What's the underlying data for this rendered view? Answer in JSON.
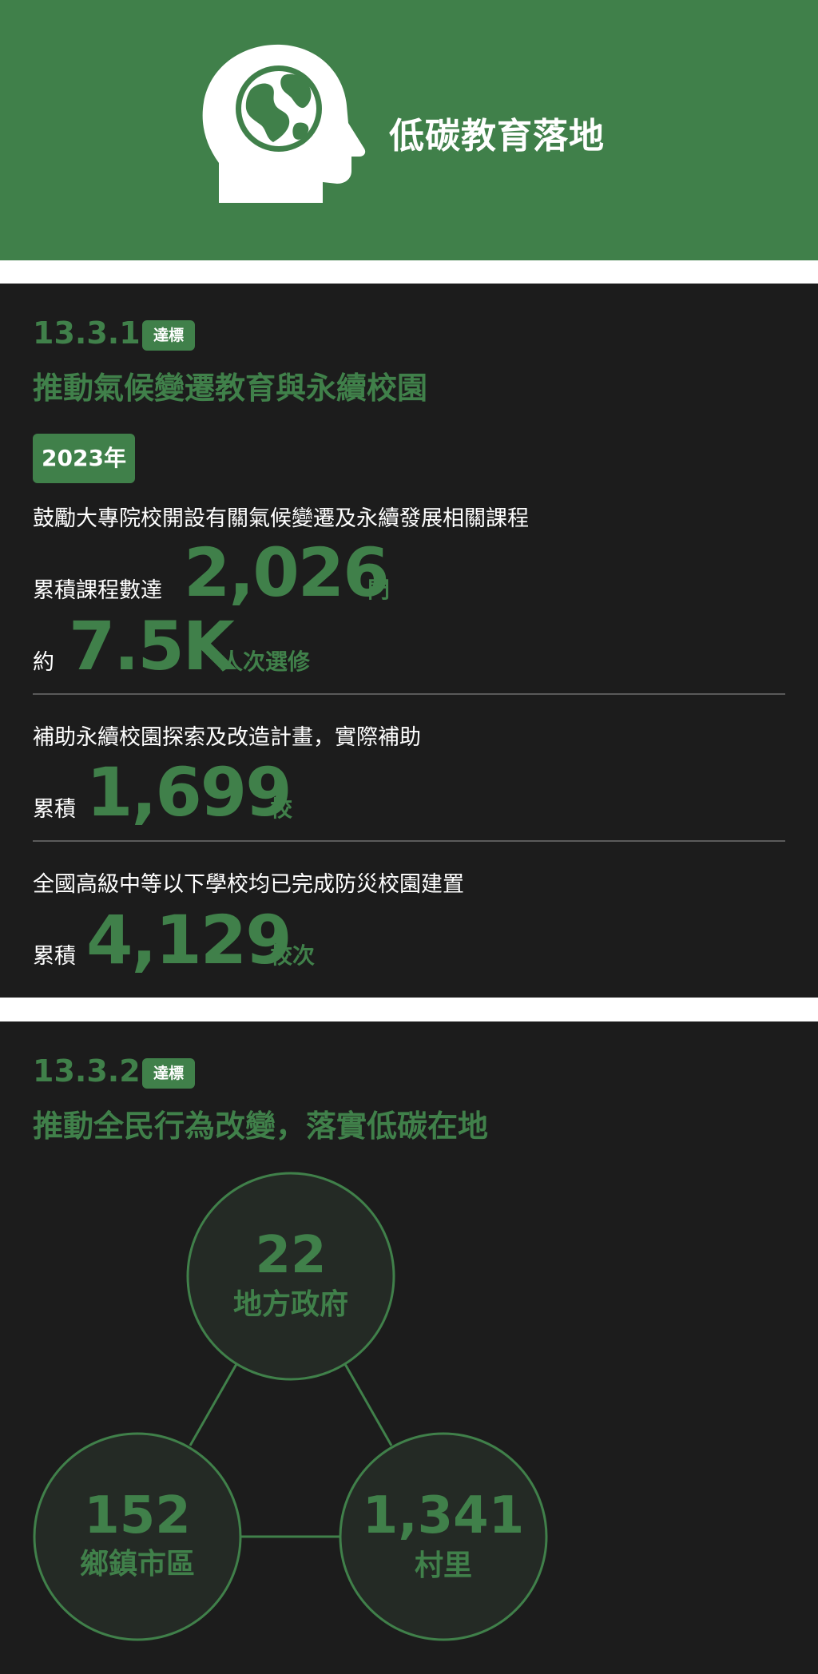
{
  "header": {
    "title": "低碳教育落地",
    "icon": "head-globe-icon",
    "background": "#40804a"
  },
  "section1": {
    "goal_number": "13.3.1",
    "badge": "達標",
    "title": "推動氣候變遷教育與永續校園",
    "year": "2023年",
    "stat1": {
      "desc": "鼓勵大專院校開設有關氣候變遷及永續發展相關課程",
      "prefix": "累積課程數達",
      "value": "2,026",
      "unit": "門"
    },
    "stat2": {
      "prefix": "約",
      "value": "7.5K",
      "unit": "人次選修"
    },
    "stat3": {
      "desc": "補助永續校園探索及改造計畫，實際補助",
      "prefix": "累積",
      "value": "1,699",
      "unit": "校"
    },
    "stat4": {
      "desc": "全國高級中等以下學校均已完成防災校園建置",
      "prefix": "累積",
      "value": "4,129",
      "unit": "校次"
    }
  },
  "section2": {
    "goal_number": "13.3.2",
    "badge": "達標",
    "title": "推動全民行為改變，落實低碳在地",
    "nodes": [
      {
        "value": "22",
        "label": "地方政府"
      },
      {
        "value": "152",
        "label": "鄉鎮市區"
      },
      {
        "value": "1,341",
        "label": "村里"
      }
    ]
  },
  "colors": {
    "accent": "#40804a",
    "panel": "#1c1c1c",
    "circle_fill": "#242a25"
  }
}
